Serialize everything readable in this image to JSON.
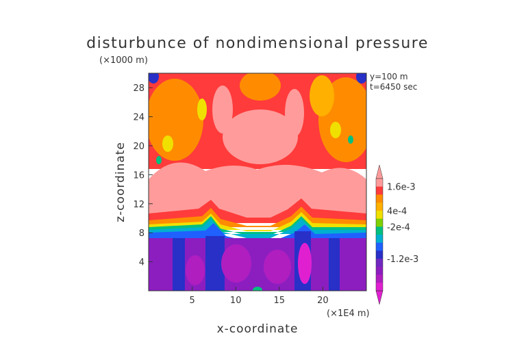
{
  "chart_data": {
    "type": "heatmap",
    "title": "disturbunce of nondimensional pressure",
    "xlabel": "x-coordinate",
    "ylabel": "z-coordinate",
    "x_unit_label": "(×1E4 m)",
    "y_unit_label": "(×1000 m)",
    "annotations": [
      "y=100 m",
      "t=6450 sec"
    ],
    "xlim": [
      0,
      25
    ],
    "ylim": [
      0,
      30
    ],
    "x_ticks": [
      "5",
      "10",
      "15",
      "20"
    ],
    "y_ticks": [
      "4",
      "8",
      "12",
      "16",
      "20",
      "24",
      "28"
    ],
    "colorbar": {
      "levels": [
        "1.6e-3",
        "4e-4",
        "-2e-4",
        "-1.2e-3"
      ],
      "colors": [
        "#ff9b9b",
        "#ff3b3b",
        "#ff8c00",
        "#ffb000",
        "#f0e000",
        "#7fd000",
        "#00c080",
        "#00b0d0",
        "#2060ff",
        "#2830c8",
        "#7028c0",
        "#8c1ec0",
        "#b01ec0",
        "#e020d0"
      ]
    },
    "bands": [
      {
        "z_range": [
          0,
          8
        ],
        "level": "-1.2e-3",
        "description": "purple/magenta with blue columns"
      },
      {
        "z_range": [
          8,
          10
        ],
        "level": "-2e-4 to 4e-4",
        "description": "blue to green to yellow to orange transition"
      },
      {
        "z_range": [
          10,
          16
        ],
        "level": "1.6e-3",
        "description": "pink"
      },
      {
        "z_range": [
          16,
          30
        ],
        "level": "4e-4 to 1.6e-3",
        "description": "red/orange/pink mottled"
      }
    ]
  }
}
